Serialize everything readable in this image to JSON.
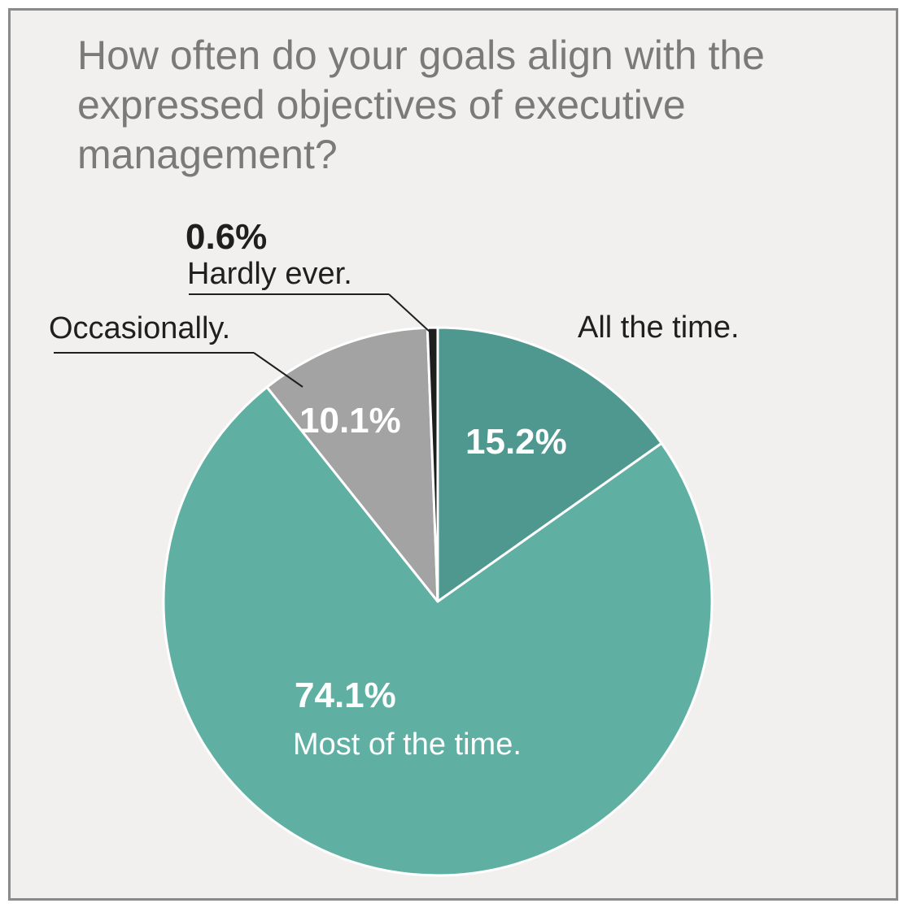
{
  "chart_data": {
    "type": "pie",
    "title": "How often do your goals align with the expressed objectives of executive management?",
    "slices": [
      {
        "label": "All the time.",
        "value": 15.2,
        "value_label": "15.2%",
        "color": "#4f9890"
      },
      {
        "label": "Most of the time.",
        "value": 74.1,
        "value_label": "74.1%",
        "color": "#5fb0a3"
      },
      {
        "label": "Occasionally.",
        "value": 10.1,
        "value_label": "10.1%",
        "color": "#a3a3a3"
      },
      {
        "label": "Hardly ever.",
        "value": 0.6,
        "value_label": "0.6%",
        "color": "#1e1e1e"
      }
    ],
    "start_angle": "12 o'clock",
    "direction": "clockwise"
  }
}
